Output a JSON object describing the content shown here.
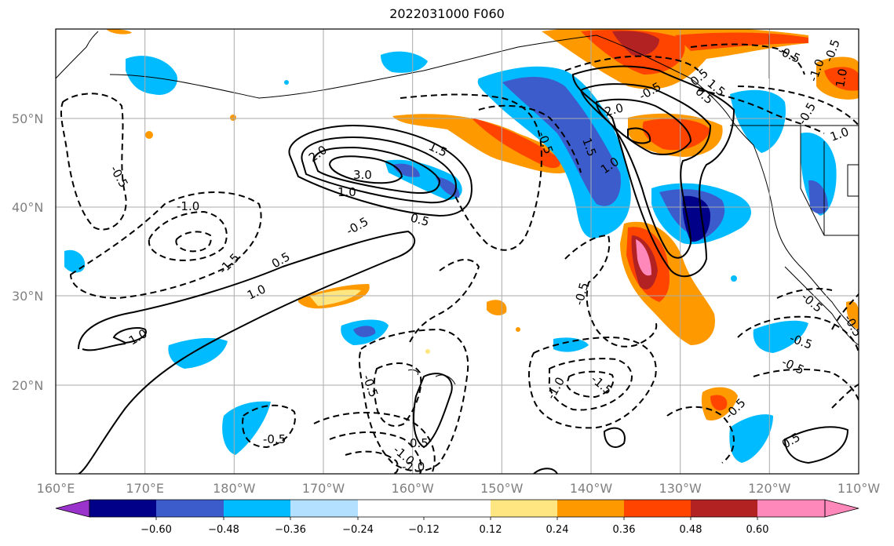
{
  "title": "2022031000 F060",
  "map": {
    "lat_labels": [
      "50°N",
      "40°N",
      "30°N",
      "20°N"
    ],
    "lon_labels": [
      "160°E",
      "170°E",
      "180°W",
      "170°W",
      "160°W",
      "150°W",
      "140°W",
      "130°W",
      "120°W",
      "110°W"
    ],
    "extent": {
      "lon_min": "160°E",
      "lon_max": "110°W",
      "lat_min": "10°N",
      "lat_max": "60°N"
    }
  },
  "colorbar": {
    "tick_labels": [
      "−0.60",
      "−0.48",
      "−0.36",
      "−0.24",
      "−0.12",
      "0.12",
      "0.24",
      "0.36",
      "0.48",
      "0.60"
    ],
    "colors": [
      "#9933cc",
      "#000088",
      "#3c5ccc",
      "#00bbff",
      "#b3e0ff",
      "#ffffff",
      "#ffe680",
      "#ff9900",
      "#ff4400",
      "#b22222",
      "#ff88bb"
    ]
  },
  "contour_labels": [
    "2.0",
    "3.0",
    "1.5",
    "1.0",
    "0.5",
    "-0.5",
    "-1.0",
    "-1.5",
    "-0.5",
    "0.5",
    "1.0",
    "2.0",
    "1.5",
    "-0.5",
    "0.5",
    "1.0",
    "-0.5",
    "-1.0",
    "-0.5",
    "1.0",
    "-0.5",
    "-1.0",
    "-1.5",
    "-0.5",
    "0.5",
    "-0.5",
    "-1.0",
    "-2.0",
    "-0.5",
    "-0.5",
    "1.0",
    "0.5",
    "-0.5",
    "0.5",
    "-0.5",
    "1.5",
    "-0.5",
    "-0.5",
    "1.0",
    "-0.5"
  ]
}
